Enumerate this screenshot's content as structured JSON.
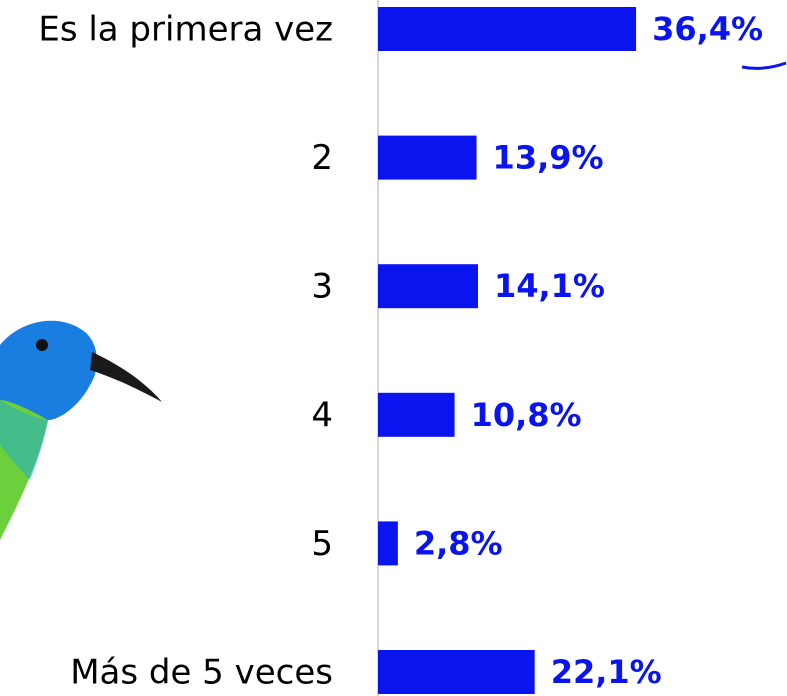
{
  "chart_data": {
    "type": "bar",
    "orientation": "horizontal",
    "categories": [
      "Es la primera vez",
      "2",
      "3",
      "4",
      "5",
      "Más de 5 veces"
    ],
    "values": [
      36.4,
      13.9,
      14.1,
      10.8,
      2.8,
      22.1
    ],
    "value_labels": [
      "36,4%",
      "13,9%",
      "14,1%",
      "10,8%",
      "2,8%",
      "22,1%"
    ],
    "color": "#0a14ee"
  }
}
